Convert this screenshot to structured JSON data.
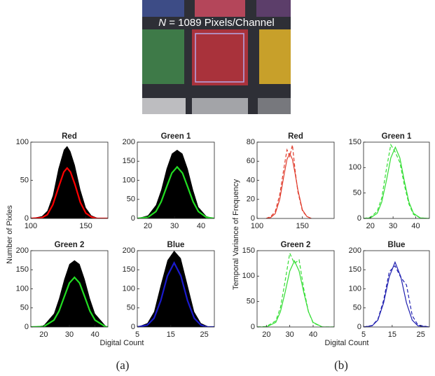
{
  "image": {
    "label_italic": "N",
    "label_rest": " = 1089 Pixels/Channel"
  },
  "panels": [
    {
      "caption": "(a)",
      "ylabel": "Number of Pixles",
      "xlabel": "Digital Count"
    },
    {
      "caption": "(b)",
      "ylabel": "Temporal Variance of Frequency",
      "xlabel": "Digital Count"
    }
  ],
  "chart_data": [
    {
      "type": "line",
      "title": "Red",
      "x": [
        100,
        110,
        115,
        120,
        125,
        130,
        133,
        136,
        140,
        145,
        150,
        155,
        160,
        170
      ],
      "envelope": {
        "color": "#000000",
        "values": [
          0,
          3,
          10,
          30,
          65,
          90,
          95,
          88,
          70,
          38,
          14,
          4,
          1,
          0
        ]
      },
      "series": [
        {
          "color": "#ff0000",
          "values": [
            0,
            1,
            5,
            18,
            40,
            61,
            66,
            61,
            45,
            21,
            7,
            2,
            0,
            0
          ]
        }
      ],
      "xlim": [
        100,
        170
      ],
      "ylim": [
        0,
        100
      ],
      "xticks": [
        100,
        150
      ],
      "yticks": [
        0,
        50,
        100
      ]
    },
    {
      "type": "line",
      "title": "Green 1",
      "x": [
        16,
        20,
        23,
        25,
        27,
        29,
        31,
        33,
        35,
        37,
        39,
        42,
        45
      ],
      "envelope": {
        "color": "#000000",
        "values": [
          0,
          8,
          35,
          75,
          130,
          170,
          180,
          170,
          130,
          75,
          30,
          6,
          0
        ]
      },
      "series": [
        {
          "color": "#22dd22",
          "values": [
            0,
            3,
            18,
            44,
            82,
            119,
            135,
            119,
            82,
            44,
            18,
            3,
            0
          ]
        }
      ],
      "xlim": [
        16,
        45
      ],
      "ylim": [
        0,
        200
      ],
      "xticks": [
        20,
        30,
        40
      ],
      "yticks": [
        0,
        50,
        100,
        150,
        200
      ]
    },
    {
      "type": "line",
      "title": "Green 2",
      "x": [
        15,
        20,
        24,
        26,
        28,
        30,
        32,
        34,
        36,
        38,
        40,
        44,
        45
      ],
      "envelope": {
        "color": "#000000",
        "values": [
          0,
          4,
          35,
          75,
          125,
          165,
          175,
          165,
          125,
          75,
          35,
          4,
          0
        ]
      },
      "series": [
        {
          "color": "#22dd22",
          "values": [
            0,
            1,
            18,
            42,
            79,
            115,
            130,
            115,
            79,
            42,
            18,
            1,
            0
          ]
        }
      ],
      "xlim": [
        15,
        45
      ],
      "ylim": [
        0,
        200
      ],
      "xticks": [
        20,
        30,
        40
      ],
      "yticks": [
        0,
        50,
        100,
        150,
        200
      ]
    },
    {
      "type": "line",
      "title": "Blue",
      "x": [
        5,
        8,
        10,
        12,
        14,
        16,
        18,
        20,
        22,
        24,
        26,
        28
      ],
      "envelope": {
        "color": "#000000",
        "values": [
          0,
          10,
          40,
          110,
          175,
          200,
          180,
          110,
          40,
          10,
          2,
          0
        ]
      },
      "series": [
        {
          "color": "#1a1acc",
          "values": [
            0,
            5,
            23,
            69,
            134,
            168,
            134,
            69,
            23,
            5,
            0,
            0
          ]
        }
      ],
      "xlim": [
        5,
        28
      ],
      "ylim": [
        0,
        200
      ],
      "xticks": [
        5,
        15,
        25
      ],
      "yticks": [
        0,
        50,
        100,
        150,
        200
      ]
    },
    {
      "type": "line",
      "title": "Red",
      "x": [
        110,
        115,
        120,
        125,
        130,
        133,
        136,
        139,
        142,
        145,
        150,
        155,
        160
      ],
      "series": [
        {
          "color": "#e03a2a",
          "dash": false,
          "values": [
            0,
            1,
            5,
            20,
            47,
            62,
            68,
            62,
            47,
            30,
            9,
            2,
            0
          ]
        },
        {
          "color": "#e03a2a",
          "dash": true,
          "values": [
            0,
            2,
            7,
            25,
            55,
            72,
            65,
            77,
            50,
            28,
            8,
            2,
            0
          ]
        }
      ],
      "xlim": [
        100,
        185
      ],
      "ylim": [
        0,
        80
      ],
      "xticks": [
        100,
        150
      ],
      "yticks": [
        0,
        20,
        40,
        60,
        80
      ]
    },
    {
      "type": "line",
      "title": "Green 1",
      "x": [
        17,
        20,
        23,
        25,
        27,
        29,
        31,
        33,
        35,
        37,
        39,
        42,
        46
      ],
      "series": [
        {
          "color": "#33dd33",
          "dash": false,
          "values": [
            0,
            1,
            10,
            32,
            73,
            119,
            140,
            119,
            73,
            32,
            10,
            1,
            0
          ]
        },
        {
          "color": "#33dd33",
          "dash": true,
          "values": [
            0,
            2,
            14,
            40,
            95,
            145,
            130,
            110,
            65,
            28,
            8,
            1,
            0
          ]
        }
      ],
      "xlim": [
        17,
        46
      ],
      "ylim": [
        0,
        150
      ],
      "xticks": [
        20,
        30,
        40
      ],
      "yticks": [
        0,
        50,
        100,
        150
      ]
    },
    {
      "type": "line",
      "title": "Green 2",
      "x": [
        16,
        20,
        24,
        26,
        28,
        30,
        32,
        34,
        36,
        38,
        40,
        44,
        49
      ],
      "series": [
        {
          "color": "#33dd33",
          "dash": false,
          "values": [
            0,
            0,
            9,
            30,
            68,
            110,
            130,
            110,
            68,
            30,
            9,
            0,
            0
          ]
        },
        {
          "color": "#33dd33",
          "dash": true,
          "values": [
            0,
            1,
            12,
            38,
            90,
            145,
            125,
            132,
            75,
            30,
            8,
            0,
            0
          ]
        }
      ],
      "xlim": [
        16,
        49
      ],
      "ylim": [
        0,
        150
      ],
      "xticks": [
        20,
        30,
        40
      ],
      "yticks": [
        0,
        50,
        100,
        150
      ]
    },
    {
      "type": "line",
      "title": "Blue",
      "x": [
        5,
        8,
        10,
        12,
        14,
        16,
        18,
        20,
        22,
        24,
        28
      ],
      "series": [
        {
          "color": "#2020b0",
          "dash": false,
          "values": [
            0,
            3,
            18,
            63,
            132,
            170,
            132,
            63,
            18,
            3,
            0
          ]
        },
        {
          "color": "#2020b0",
          "dash": true,
          "values": [
            0,
            4,
            20,
            70,
            145,
            160,
            130,
            110,
            30,
            5,
            0
          ]
        }
      ],
      "xlim": [
        5,
        28
      ],
      "ylim": [
        0,
        200
      ],
      "xticks": [
        5,
        15,
        25
      ],
      "yticks": [
        0,
        50,
        100,
        150,
        200
      ]
    }
  ]
}
